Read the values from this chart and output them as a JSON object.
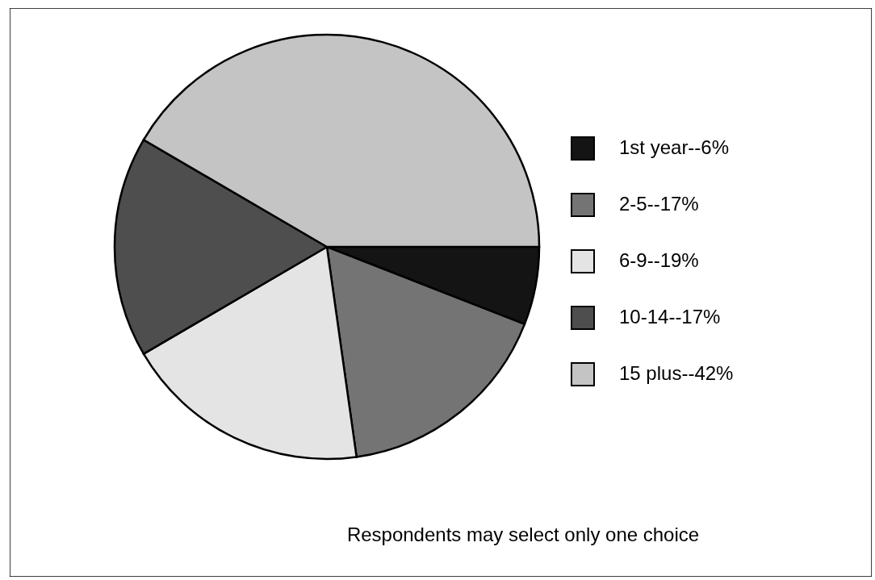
{
  "chart_data": {
    "type": "pie",
    "categories": [
      "1st year--6%",
      "2-5--17%",
      "6-9--19%",
      "10-14--17%",
      "15 plus--42%"
    ],
    "values": [
      6,
      17,
      19,
      17,
      42
    ],
    "colors": [
      "#141414",
      "#747474",
      "#e4e4e4",
      "#4e4e4e",
      "#c4c4c4"
    ],
    "legend": "right",
    "annotations": [
      "Respondents may select only one choice"
    ]
  }
}
